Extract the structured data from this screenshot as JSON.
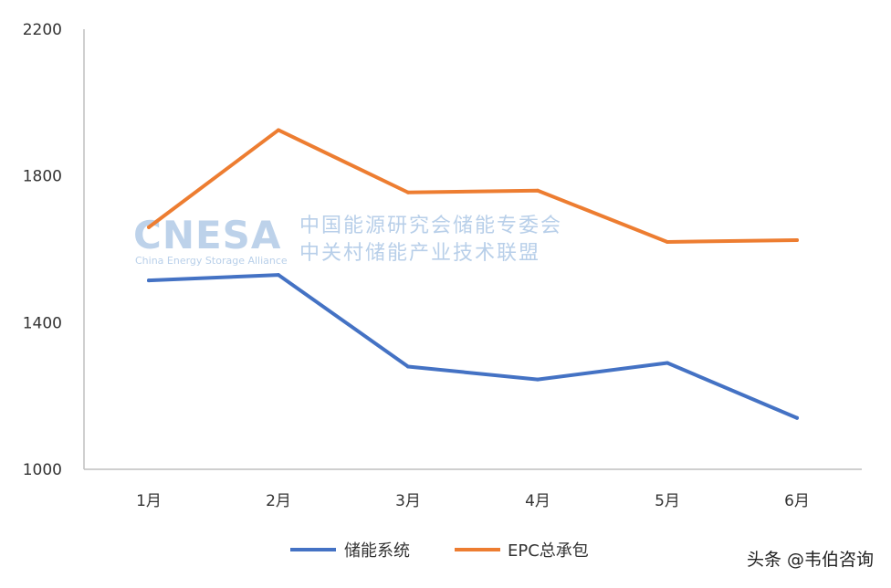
{
  "chart_data": {
    "type": "line",
    "categories": [
      "1月",
      "2月",
      "3月",
      "4月",
      "5月",
      "6月"
    ],
    "series": [
      {
        "name": "储能系统",
        "color": "#4472c4",
        "values": [
          1515,
          1530,
          1280,
          1245,
          1290,
          1140
        ]
      },
      {
        "name": "EPC总承包",
        "color": "#ed7d31",
        "values": [
          1660,
          1925,
          1755,
          1760,
          1620,
          1625
        ]
      }
    ],
    "yticks": [
      1000,
      1400,
      1800,
      2200
    ],
    "ylim": [
      1000,
      2200
    ],
    "grid": false,
    "legend": "bottom-center"
  },
  "watermark": {
    "logo": "CNESA",
    "logo_sub": "China Energy Storage Alliance",
    "cn_line1": "中国能源研究会储能专委会",
    "cn_line2": "中关村储能产业技术联盟"
  },
  "credit": "头条 @韦伯咨询"
}
